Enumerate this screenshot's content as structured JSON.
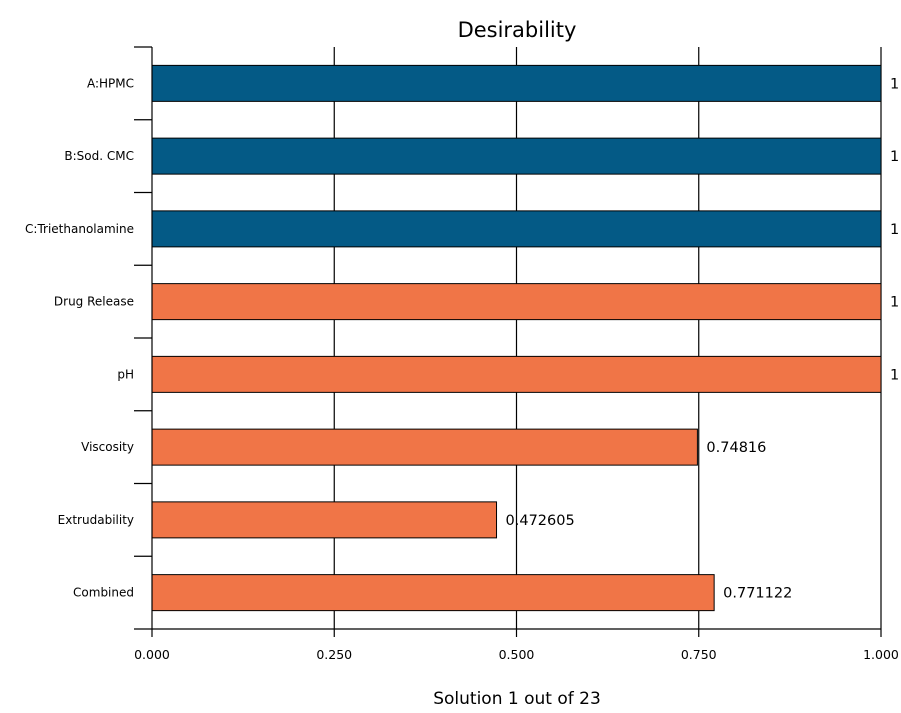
{
  "chart_data": {
    "type": "bar",
    "orientation": "horizontal",
    "title": "Desirability",
    "footer": "Solution 1 out of 23",
    "categories": [
      "A:HPMC",
      "B:Sod. CMC",
      "C:Triethanolamine",
      "Drug Release",
      "pH",
      "Viscosity",
      "Extrudability",
      "Combined"
    ],
    "values": [
      1,
      1,
      1,
      1,
      1,
      0.74816,
      0.472605,
      0.771122
    ],
    "value_labels": [
      "1",
      "1",
      "1",
      "1",
      "1",
      "0.74816",
      "0.472605",
      "0.771122"
    ],
    "bar_colors": [
      "#045a86",
      "#045a86",
      "#045a86",
      "#f07547",
      "#f07547",
      "#f07547",
      "#f07547",
      "#f07547"
    ],
    "xlim": [
      0,
      1
    ],
    "x_ticks": [
      0,
      0.25,
      0.5,
      0.75,
      1
    ],
    "x_tick_labels": [
      "0.000",
      "0.250",
      "0.500",
      "0.750",
      "1.000"
    ],
    "grid": "vertical",
    "legend": "none"
  }
}
